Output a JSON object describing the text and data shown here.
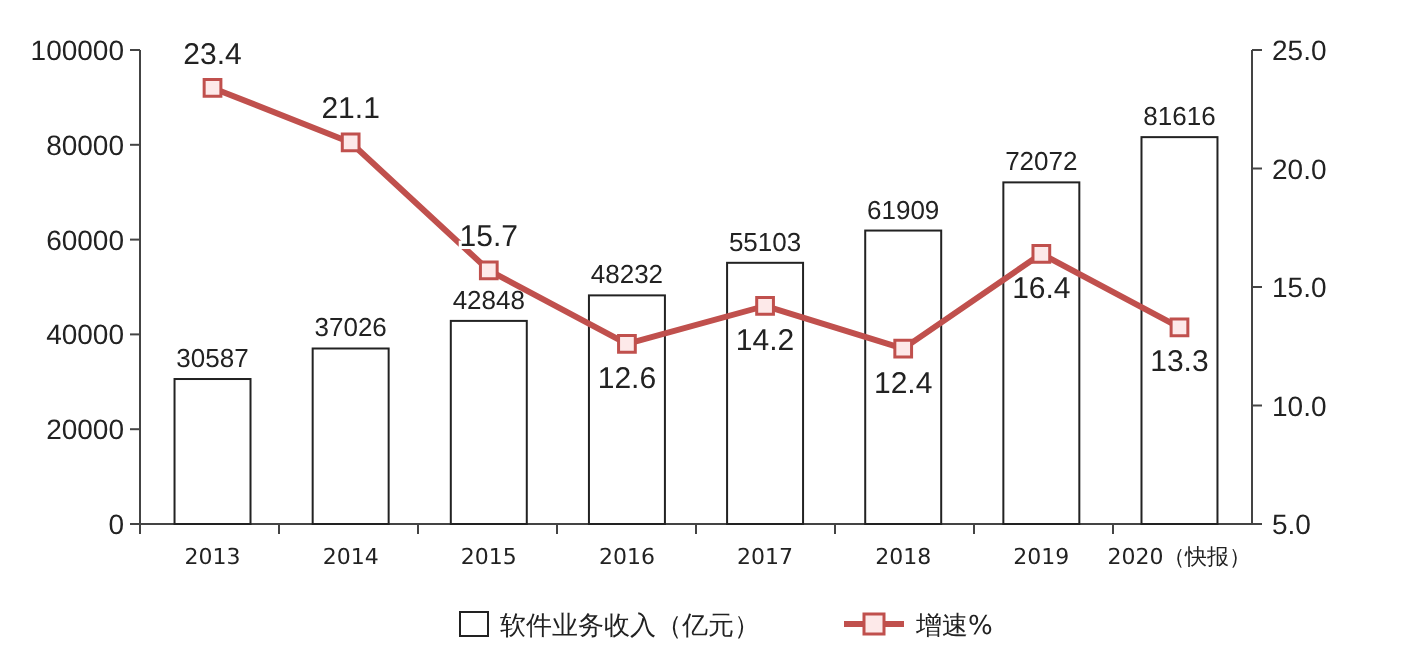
{
  "chart_data": {
    "type": "bar",
    "categories": [
      "2013",
      "2014",
      "2015",
      "2016",
      "2017",
      "2018",
      "2019",
      "2020（快报）"
    ],
    "series": [
      {
        "name": "软件业务收入（亿元）",
        "color": "#ffffff",
        "values": [
          30587,
          37026,
          42848,
          48232,
          55103,
          61909,
          72072,
          81616
        ]
      },
      {
        "name": "增速%",
        "type": "line",
        "axis": "y2",
        "color": "#c0504d",
        "values": [
          23.4,
          21.1,
          15.7,
          12.6,
          14.2,
          12.4,
          16.4,
          13.3
        ]
      }
    ],
    "ylim": [
      0,
      100000
    ],
    "yticks": [
      0,
      20000,
      40000,
      60000,
      80000,
      100000
    ],
    "y2lim": [
      5,
      25
    ],
    "y2ticks": [
      {
        "value": 5,
        "label": "5.0"
      },
      {
        "value": 10,
        "label": "10.0"
      },
      {
        "value": 15,
        "label": "15.0"
      },
      {
        "value": 20,
        "label": "20.0"
      },
      {
        "value": 25,
        "label": "25.0"
      }
    ],
    "data_labels": true,
    "legend": "bottom",
    "marker": "square",
    "grid": false
  }
}
